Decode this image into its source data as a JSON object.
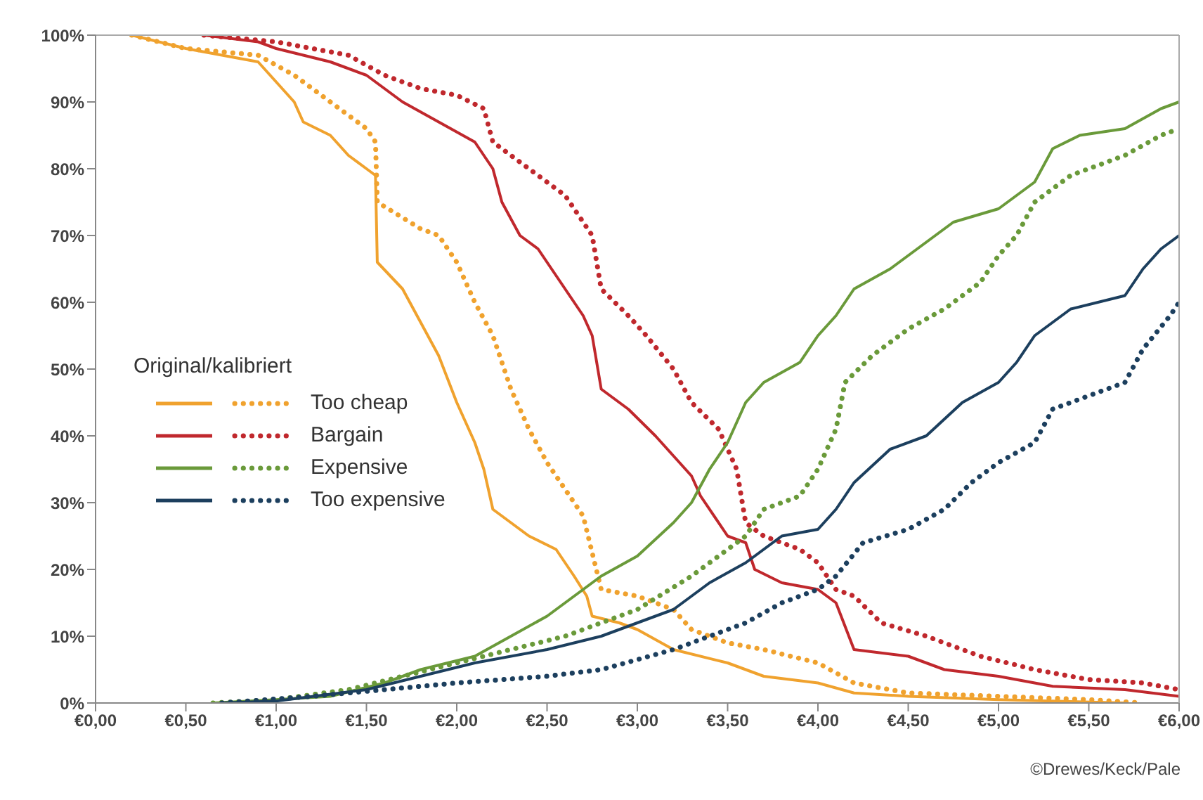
{
  "chart_data": {
    "type": "line",
    "legend_title": "Original/kalibriert",
    "legend": "left",
    "grid": false,
    "marker": "none",
    "xlim": [
      0,
      6
    ],
    "ylim": [
      0,
      100
    ],
    "xticks": [
      {
        "value": 0,
        "label": "€0,00"
      },
      {
        "value": 0.5,
        "label": "€0,50"
      },
      {
        "value": 1,
        "label": "€1,00"
      },
      {
        "value": 1.5,
        "label": "€1,50"
      },
      {
        "value": 2,
        "label": "€2,00"
      },
      {
        "value": 2.5,
        "label": "€2,50"
      },
      {
        "value": 3,
        "label": "€3,00"
      },
      {
        "value": 3.5,
        "label": "€3,50"
      },
      {
        "value": 4,
        "label": "€4,00"
      },
      {
        "value": 4.5,
        "label": "€4,50"
      },
      {
        "value": 5,
        "label": "€5,00"
      },
      {
        "value": 5.5,
        "label": "€5,50"
      },
      {
        "value": 6,
        "label": "€6,00"
      }
    ],
    "yticks": [
      {
        "value": 0,
        "label": "0%"
      },
      {
        "value": 10,
        "label": "10%"
      },
      {
        "value": 20,
        "label": "20%"
      },
      {
        "value": 30,
        "label": "30%"
      },
      {
        "value": 40,
        "label": "40%"
      },
      {
        "value": 50,
        "label": "50%"
      },
      {
        "value": 60,
        "label": "60%"
      },
      {
        "value": 70,
        "label": "70%"
      },
      {
        "value": 80,
        "label": "80%"
      },
      {
        "value": 90,
        "label": "90%"
      },
      {
        "value": 100,
        "label": "100%"
      }
    ],
    "annotations": [
      "©Drewes/Keck/Pale"
    ],
    "series": [
      {
        "color": "#f0a22e",
        "line_style": "solid",
        "x": [
          0.2,
          0.5,
          0.9,
          1.0,
          1.1,
          1.15,
          1.3,
          1.4,
          1.5,
          1.55,
          1.56,
          1.7,
          1.8,
          1.9,
          2.0,
          2.1,
          2.15,
          2.2,
          2.3,
          2.4,
          2.55,
          2.65,
          2.72,
          2.75,
          2.9,
          3.0,
          3.2,
          3.5,
          3.7,
          4.0,
          4.2,
          4.5,
          5.0,
          5.7
        ],
        "values": [
          100,
          98,
          96,
          93,
          90,
          87,
          85,
          82,
          80,
          79,
          66,
          62,
          57,
          52,
          45,
          39,
          35,
          29,
          27,
          25,
          23,
          19,
          16,
          13,
          12,
          11,
          8,
          6,
          4,
          3,
          1.5,
          1,
          0.5,
          0
        ]
      },
      {
        "name": "Too cheap",
        "color": "#f0a22e",
        "line_style": "dotted",
        "x": [
          0.2,
          0.5,
          0.9,
          1.1,
          1.3,
          1.5,
          1.55,
          1.56,
          1.8,
          1.9,
          2.0,
          2.1,
          2.2,
          2.3,
          2.4,
          2.5,
          2.6,
          2.7,
          2.8,
          3.0,
          3.2,
          3.3,
          3.5,
          3.7,
          4.0,
          4.2,
          4.5,
          5.0,
          5.5,
          5.8
        ],
        "values": [
          100,
          98,
          97,
          94,
          90,
          86,
          84,
          75,
          71,
          70,
          66,
          60,
          55,
          47,
          41,
          36,
          32,
          28,
          17,
          16,
          14,
          11,
          9,
          8,
          6,
          3,
          1.5,
          1,
          0.5,
          0
        ]
      },
      {
        "color": "#c0282d",
        "line_style": "solid",
        "x": [
          0.6,
          0.9,
          1.0,
          1.3,
          1.5,
          1.7,
          1.9,
          2.1,
          2.2,
          2.25,
          2.35,
          2.45,
          2.55,
          2.7,
          2.75,
          2.8,
          2.95,
          3.1,
          3.2,
          3.3,
          3.35,
          3.5,
          3.6,
          3.65,
          3.8,
          4.0,
          4.1,
          4.2,
          4.5,
          4.7,
          5.0,
          5.3,
          5.7,
          6.0
        ],
        "values": [
          100,
          99,
          98,
          96,
          94,
          90,
          87,
          84,
          80,
          75,
          70,
          68,
          64,
          58,
          55,
          47,
          44,
          40,
          37,
          34,
          31,
          25,
          24,
          20,
          18,
          17,
          15,
          8,
          7,
          5,
          4,
          2.5,
          2,
          1
        ]
      },
      {
        "name": "Bargain",
        "color": "#c0282d",
        "line_style": "dotted",
        "x": [
          0.6,
          1.0,
          1.4,
          1.6,
          1.8,
          2.0,
          2.15,
          2.2,
          2.4,
          2.6,
          2.75,
          2.8,
          2.95,
          3.05,
          3.2,
          3.3,
          3.45,
          3.55,
          3.6,
          3.7,
          3.9,
          4.0,
          4.1,
          4.2,
          4.35,
          4.6,
          4.9,
          5.2,
          5.5,
          5.8,
          6.0
        ],
        "values": [
          100,
          99,
          97,
          94,
          92,
          91,
          89,
          84,
          80,
          76,
          70,
          62,
          58,
          55,
          50,
          45,
          41,
          35,
          27,
          25,
          23,
          21,
          17,
          16,
          12,
          10,
          7,
          5,
          3.5,
          3,
          2
        ]
      },
      {
        "color": "#6a9a3a",
        "line_style": "solid",
        "x": [
          0.65,
          1.0,
          1.3,
          1.6,
          1.8,
          2.1,
          2.3,
          2.5,
          2.7,
          2.8,
          3.0,
          3.2,
          3.3,
          3.4,
          3.5,
          3.6,
          3.7,
          3.9,
          4.0,
          4.1,
          4.2,
          4.4,
          4.6,
          4.75,
          5.0,
          5.2,
          5.3,
          5.45,
          5.7,
          5.9,
          6.0
        ],
        "values": [
          0,
          0.5,
          1,
          3,
          5,
          7,
          10,
          13,
          17,
          19,
          22,
          27,
          30,
          35,
          39,
          45,
          48,
          51,
          55,
          58,
          62,
          65,
          69,
          72,
          74,
          78,
          83,
          85,
          86,
          89,
          90
        ]
      },
      {
        "name": "Expensive",
        "color": "#6a9a3a",
        "line_style": "dotted",
        "x": [
          0.65,
          1.0,
          1.4,
          1.7,
          2.0,
          2.3,
          2.6,
          2.8,
          3.0,
          3.3,
          3.5,
          3.6,
          3.7,
          3.9,
          4.0,
          4.1,
          4.15,
          4.3,
          4.5,
          4.7,
          4.9,
          5.0,
          5.1,
          5.2,
          5.4,
          5.7,
          5.9,
          6.0
        ],
        "values": [
          0,
          0.5,
          2,
          4,
          6,
          8,
          10,
          12,
          14,
          19,
          23,
          25,
          29,
          31,
          35,
          41,
          48,
          52,
          56,
          59,
          63,
          67,
          70,
          75,
          79,
          82,
          85,
          86
        ]
      },
      {
        "color": "#1c3f5e",
        "line_style": "solid",
        "x": [
          0.7,
          1.0,
          1.5,
          1.8,
          2.1,
          2.5,
          2.8,
          3.0,
          3.2,
          3.4,
          3.6,
          3.8,
          4.0,
          4.1,
          4.2,
          4.4,
          4.6,
          4.8,
          5.0,
          5.1,
          5.2,
          5.4,
          5.7,
          5.8,
          5.9,
          6.0
        ],
        "values": [
          0,
          0.3,
          2,
          4,
          6,
          8,
          10,
          12,
          14,
          18,
          21,
          25,
          26,
          29,
          33,
          38,
          40,
          45,
          48,
          51,
          55,
          59,
          61,
          65,
          68,
          70
        ]
      },
      {
        "name": "Too expensive",
        "color": "#1c3f5e",
        "line_style": "dotted",
        "x": [
          0.7,
          1.2,
          1.6,
          2.0,
          2.5,
          2.8,
          3.2,
          3.5,
          3.6,
          3.8,
          4.0,
          4.1,
          4.25,
          4.5,
          4.7,
          4.85,
          5.0,
          5.2,
          5.3,
          5.5,
          5.7,
          5.8,
          5.95,
          6.0
        ],
        "values": [
          0,
          1,
          2,
          3,
          4,
          5,
          8,
          11,
          12,
          15,
          17,
          19,
          24,
          26,
          29,
          33,
          36,
          39,
          44,
          46,
          48,
          53,
          58,
          60
        ]
      }
    ]
  }
}
